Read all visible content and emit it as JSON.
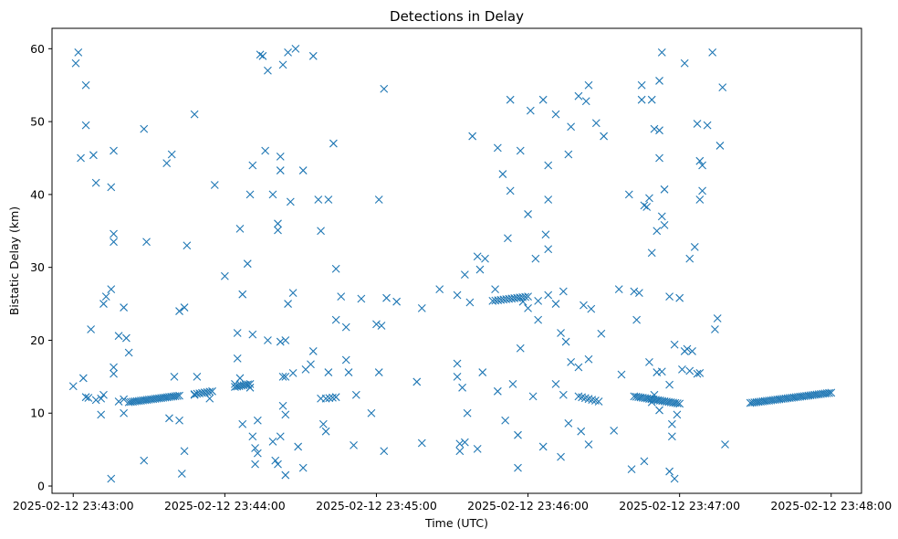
{
  "chart_data": {
    "type": "scatter",
    "title": "Detections in Delay",
    "xlabel": "Time (UTC)",
    "ylabel": "Bistatic Delay (km)",
    "marker": "x",
    "color": "#1f77b4",
    "x_unit": "seconds since 2025-02-12 23:43:00",
    "xlim": [
      -8.4,
      312.0
    ],
    "ylim": [
      -1.0,
      62.8
    ],
    "x_ticks": [
      {
        "value": 0,
        "label": "2025-02-12 23:43:00"
      },
      {
        "value": 60,
        "label": "2025-02-12 23:44:00"
      },
      {
        "value": 120,
        "label": "2025-02-12 23:45:00"
      },
      {
        "value": 180,
        "label": "2025-02-12 23:46:00"
      },
      {
        "value": 240,
        "label": "2025-02-12 23:47:00"
      },
      {
        "value": 300,
        "label": "2025-02-12 23:48:00"
      }
    ],
    "y_ticks": [
      {
        "value": 0,
        "label": "0"
      },
      {
        "value": 10,
        "label": "10"
      },
      {
        "value": 20,
        "label": "20"
      },
      {
        "value": 30,
        "label": "30"
      },
      {
        "value": 40,
        "label": "40"
      },
      {
        "value": 50,
        "label": "50"
      },
      {
        "value": 60,
        "label": "60"
      }
    ],
    "clusters": [
      {
        "x_start": 22,
        "x_end": 42,
        "y_start": 11.5,
        "y_end": 12.4,
        "count": 26
      },
      {
        "x_start": 48,
        "x_end": 55,
        "y_start": 12.6,
        "y_end": 13.0,
        "count": 8
      },
      {
        "x_start": 64,
        "x_end": 70,
        "y_start": 13.6,
        "y_end": 14.0,
        "count": 8
      },
      {
        "x_start": 100,
        "x_end": 104,
        "y_start": 12.0,
        "y_end": 12.2,
        "count": 4
      },
      {
        "x_start": 166,
        "x_end": 180,
        "y_start": 25.4,
        "y_end": 26.0,
        "count": 14
      },
      {
        "x_start": 200,
        "x_end": 208,
        "y_start": 12.3,
        "y_end": 11.6,
        "count": 7
      },
      {
        "x_start": 222,
        "x_end": 240,
        "y_start": 12.3,
        "y_end": 11.3,
        "count": 22
      },
      {
        "x_start": 268,
        "x_end": 300,
        "y_start": 11.4,
        "y_end": 12.8,
        "count": 40
      }
    ],
    "points": [
      [
        1,
        58
      ],
      [
        2,
        59.5
      ],
      [
        3,
        45
      ],
      [
        5,
        55
      ],
      [
        5,
        49.5
      ],
      [
        8,
        45.4
      ],
      [
        9,
        41.6
      ],
      [
        11,
        12
      ],
      [
        13,
        26
      ],
      [
        12,
        25
      ],
      [
        15,
        41
      ],
      [
        15,
        27
      ],
      [
        16,
        46
      ],
      [
        16,
        34.6
      ],
      [
        16,
        33.5
      ],
      [
        18,
        20.6
      ],
      [
        20,
        24.5
      ],
      [
        21,
        20.3
      ],
      [
        22,
        18.3
      ],
      [
        28,
        49
      ],
      [
        29,
        33.5
      ],
      [
        37,
        44.3
      ],
      [
        39,
        45.5
      ],
      [
        42,
        24
      ],
      [
        44,
        24.5
      ],
      [
        45,
        33
      ],
      [
        48,
        51
      ],
      [
        56,
        41.3
      ],
      [
        60,
        28.8
      ],
      [
        66,
        35.3
      ],
      [
        67,
        26.3
      ],
      [
        69,
        30.5
      ],
      [
        70,
        40
      ],
      [
        71,
        44
      ],
      [
        71,
        20.8
      ],
      [
        73,
        9
      ],
      [
        74,
        59.2
      ],
      [
        75,
        59
      ],
      [
        76,
        46
      ],
      [
        77,
        57
      ],
      [
        79,
        40
      ],
      [
        81,
        36
      ],
      [
        81,
        35.1
      ],
      [
        82,
        45.2
      ],
      [
        82,
        43.3
      ],
      [
        83,
        57.8
      ],
      [
        85,
        59.5
      ],
      [
        85,
        25
      ],
      [
        86,
        39
      ],
      [
        87,
        26.5
      ],
      [
        88,
        60
      ],
      [
        91,
        43.3
      ],
      [
        94,
        16.7
      ],
      [
        95,
        59
      ],
      [
        97,
        39.3
      ],
      [
        98,
        35
      ],
      [
        101,
        39.3
      ],
      [
        103,
        47
      ],
      [
        104,
        29.8
      ],
      [
        112,
        12.5
      ],
      [
        121,
        39.3
      ],
      [
        122,
        22
      ],
      [
        123,
        54.5
      ],
      [
        128,
        25.3
      ],
      [
        145,
        27
      ],
      [
        152,
        26.2
      ],
      [
        155,
        29
      ],
      [
        157,
        25.2
      ],
      [
        158,
        48
      ],
      [
        160,
        31.5
      ],
      [
        161,
        29.7
      ],
      [
        163,
        31.2
      ],
      [
        168,
        46.4
      ],
      [
        170,
        42.8
      ],
      [
        172,
        34
      ],
      [
        173,
        40.5
      ],
      [
        173,
        53
      ],
      [
        177,
        46
      ],
      [
        180,
        37.3
      ],
      [
        181,
        51.5
      ],
      [
        183,
        31.2
      ],
      [
        184,
        25.4
      ],
      [
        186,
        53
      ],
      [
        187,
        34.5
      ],
      [
        188,
        44
      ],
      [
        188,
        39.3
      ],
      [
        188,
        32.5
      ],
      [
        191,
        51
      ],
      [
        193,
        21
      ],
      [
        194,
        26.7
      ],
      [
        196,
        45.5
      ],
      [
        197,
        49.3
      ],
      [
        200,
        53.5
      ],
      [
        202,
        24.8
      ],
      [
        203,
        52.8
      ],
      [
        204,
        55
      ],
      [
        205,
        24.3
      ],
      [
        207,
        49.8
      ],
      [
        209,
        20.9
      ],
      [
        210,
        48
      ],
      [
        216,
        27
      ],
      [
        220,
        40
      ],
      [
        222,
        26.7
      ],
      [
        223,
        22.8
      ],
      [
        224,
        26.5
      ],
      [
        225,
        53
      ],
      [
        225,
        55
      ],
      [
        226,
        38.5
      ],
      [
        227,
        38.3
      ],
      [
        228,
        39.5
      ],
      [
        229,
        32
      ],
      [
        229,
        53
      ],
      [
        230,
        49
      ],
      [
        231,
        35
      ],
      [
        232,
        48.8
      ],
      [
        232,
        45
      ],
      [
        232,
        55.6
      ],
      [
        233,
        59.5
      ],
      [
        233,
        37
      ],
      [
        234,
        35.8
      ],
      [
        234,
        40.7
      ],
      [
        236,
        26
      ],
      [
        238,
        19.4
      ],
      [
        240,
        25.8
      ],
      [
        242,
        58
      ],
      [
        244,
        31.2
      ],
      [
        245,
        18.5
      ],
      [
        246,
        32.8
      ],
      [
        247,
        49.7
      ],
      [
        248,
        39.3
      ],
      [
        248,
        44.6
      ],
      [
        249,
        44
      ],
      [
        249,
        40.5
      ],
      [
        251,
        49.5
      ],
      [
        253,
        59.5
      ],
      [
        254,
        21.5
      ],
      [
        255,
        23
      ],
      [
        256,
        46.7
      ],
      [
        257,
        54.7
      ],
      [
        0,
        13.7
      ],
      [
        4,
        14.8
      ],
      [
        5,
        12.2
      ],
      [
        6,
        12.1
      ],
      [
        7,
        21.5
      ],
      [
        9,
        11.8
      ],
      [
        11,
        9.8
      ],
      [
        12,
        12.5
      ],
      [
        15,
        1
      ],
      [
        16,
        16.3
      ],
      [
        16,
        15.4
      ],
      [
        18,
        11.6
      ],
      [
        20,
        11.9
      ],
      [
        20,
        10
      ],
      [
        28,
        3.5
      ],
      [
        38,
        9.3
      ],
      [
        40,
        15
      ],
      [
        42,
        9
      ],
      [
        43,
        1.7
      ],
      [
        44,
        4.8
      ],
      [
        48,
        12.5
      ],
      [
        49,
        15
      ],
      [
        54,
        12
      ],
      [
        64,
        14
      ],
      [
        65,
        21
      ],
      [
        65,
        17.5
      ],
      [
        66,
        14.8
      ],
      [
        67,
        8.5
      ],
      [
        70,
        13.5
      ],
      [
        71,
        6.8
      ],
      [
        72,
        5.2
      ],
      [
        72,
        3.0
      ],
      [
        73,
        4.5
      ],
      [
        77,
        20
      ],
      [
        79,
        6.1
      ],
      [
        80,
        3.5
      ],
      [
        81,
        3.0
      ],
      [
        82,
        6.8
      ],
      [
        82,
        19.8
      ],
      [
        83,
        11
      ],
      [
        83,
        15
      ],
      [
        84,
        9.8
      ],
      [
        84,
        1.5
      ],
      [
        84,
        20
      ],
      [
        84,
        15
      ],
      [
        87,
        15.5
      ],
      [
        89,
        5.4
      ],
      [
        91,
        2.5
      ],
      [
        92,
        16
      ],
      [
        95,
        18.5
      ],
      [
        98,
        12
      ],
      [
        99,
        8.5
      ],
      [
        100,
        7.5
      ],
      [
        101,
        15.6
      ],
      [
        104,
        22.8
      ],
      [
        106,
        26
      ],
      [
        108,
        21.8
      ],
      [
        108,
        17.3
      ],
      [
        109,
        15.6
      ],
      [
        111,
        5.6
      ],
      [
        114,
        25.7
      ],
      [
        118,
        10
      ],
      [
        120,
        22.2
      ],
      [
        121,
        15.6
      ],
      [
        123,
        4.8
      ],
      [
        124,
        25.8
      ],
      [
        136,
        14.3
      ],
      [
        138,
        24.4
      ],
      [
        138,
        5.9
      ],
      [
        152,
        16.8
      ],
      [
        152,
        15
      ],
      [
        153,
        4.8
      ],
      [
        153,
        5.8
      ],
      [
        154,
        13.5
      ],
      [
        155,
        6
      ],
      [
        156,
        10
      ],
      [
        160,
        5.1
      ],
      [
        162,
        15.6
      ],
      [
        167,
        27
      ],
      [
        168,
        13
      ],
      [
        171,
        9
      ],
      [
        174,
        14
      ],
      [
        176,
        2.5
      ],
      [
        176,
        7
      ],
      [
        177,
        18.9
      ],
      [
        178,
        25.3
      ],
      [
        180,
        24.4
      ],
      [
        182,
        12.3
      ],
      [
        184,
        22.8
      ],
      [
        186,
        5.4
      ],
      [
        188,
        26.2
      ],
      [
        191,
        25
      ],
      [
        191,
        14
      ],
      [
        193,
        4
      ],
      [
        194,
        12.5
      ],
      [
        195,
        19.8
      ],
      [
        196,
        8.6
      ],
      [
        197,
        17
      ],
      [
        200,
        16.3
      ],
      [
        201,
        7.5
      ],
      [
        204,
        5.7
      ],
      [
        204,
        17.4
      ],
      [
        214,
        7.6
      ],
      [
        217,
        15.3
      ],
      [
        221,
        2.3
      ],
      [
        226,
        3.4
      ],
      [
        228,
        17
      ],
      [
        229,
        11.5
      ],
      [
        230,
        12.5
      ],
      [
        231,
        15.6
      ],
      [
        232,
        10.4
      ],
      [
        233,
        15.7
      ],
      [
        236,
        2
      ],
      [
        236,
        13.9
      ],
      [
        237,
        8.5
      ],
      [
        237,
        6.8
      ],
      [
        238,
        1
      ],
      [
        239,
        9.8
      ],
      [
        241,
        16
      ],
      [
        242,
        18.5
      ],
      [
        243,
        18.8
      ],
      [
        244,
        15.8
      ],
      [
        247,
        15.4
      ],
      [
        248,
        15.5
      ],
      [
        258,
        5.7
      ]
    ]
  }
}
